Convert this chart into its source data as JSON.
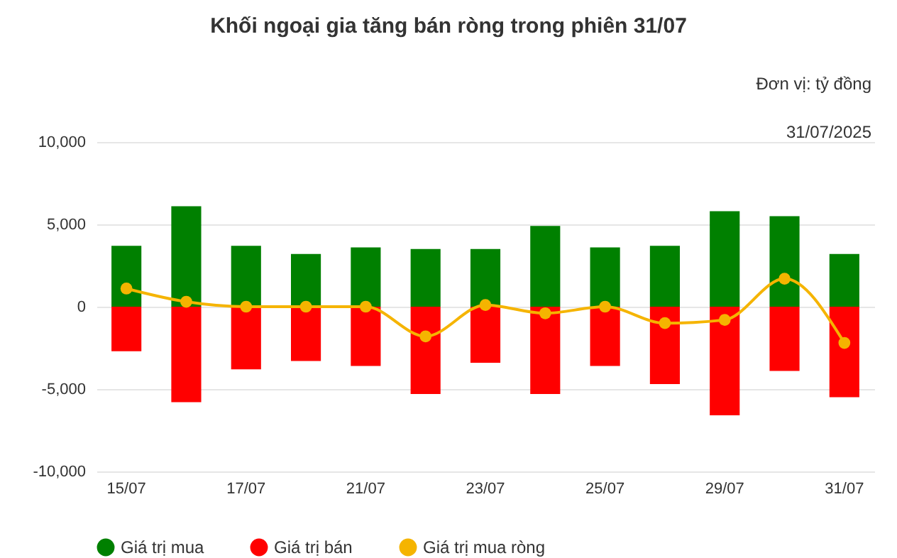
{
  "chart_data": {
    "type": "bar",
    "title": "Khối ngoại gia tăng bán ròng trong phiên 31/07",
    "annotations": [
      "Đơn vị: tỷ đồng",
      "31/07/2025"
    ],
    "categories": [
      "15/07",
      null,
      "17/07",
      null,
      "21/07",
      null,
      "23/07",
      null,
      "25/07",
      null,
      "29/07",
      null,
      "31/07"
    ],
    "series": [
      {
        "name": "Giá trị mua",
        "color": "#008000",
        "values": [
          3700,
          6100,
          3700,
          3200,
          3600,
          3500,
          3500,
          4900,
          3600,
          3700,
          5800,
          5500,
          3200
        ]
      },
      {
        "name": "Giá trị bán",
        "color": "#ff0000",
        "values": [
          -2700,
          -5800,
          -3800,
          -3300,
          -3600,
          -5300,
          -3400,
          -5300,
          -3600,
          -4700,
          -6600,
          -3900,
          -5500
        ]
      },
      {
        "name": "Giá trị mua ròng",
        "color": "#f5b400",
        "type": "line",
        "values": [
          1100,
          300,
          0,
          0,
          0,
          -1800,
          100,
          -400,
          0,
          -1000,
          -800,
          1700,
          -2200
        ]
      }
    ],
    "stacked": true,
    "ylim": [
      -10000,
      10000
    ],
    "yticks": [
      {
        "value": -10000,
        "label": "-10,000"
      },
      {
        "value": -5000,
        "label": "-5,000"
      },
      0,
      {
        "value": 5000,
        "label": "5,000"
      },
      {
        "value": 10000,
        "label": "10,000"
      }
    ],
    "grid": "y",
    "legend": "bottom",
    "marker": "circle"
  }
}
